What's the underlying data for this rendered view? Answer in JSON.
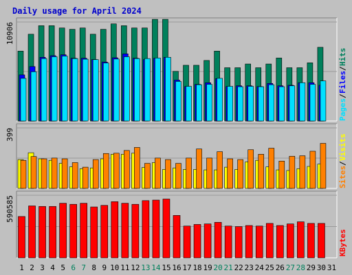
{
  "colors": {
    "background": "#C0C0C0",
    "border_light": "#FFFFFF",
    "border_dark": "#808080",
    "title": "#0000CC",
    "hits": "#00805C",
    "files": "#0000FF",
    "pages": "#00E0FF",
    "visits": "#FFFF00",
    "sites": "#FF8000",
    "kbytes": "#FF0000",
    "weekend_label": "#00805C",
    "weekday_label": "#000000",
    "axis_label": "#000000"
  },
  "chart_data": {
    "type": "bar",
    "title": "Daily usage for April 2024",
    "categories": [
      "1",
      "2",
      "3",
      "4",
      "5",
      "6",
      "7",
      "8",
      "9",
      "10",
      "11",
      "12",
      "13",
      "14",
      "15",
      "16",
      "17",
      "18",
      "19",
      "20",
      "21",
      "22",
      "23",
      "24",
      "25",
      "26",
      "27",
      "28",
      "29",
      "30",
      "31"
    ],
    "weekend_days": [
      "6",
      "7",
      "13",
      "14",
      "20",
      "21",
      "27",
      "28"
    ],
    "panels": [
      {
        "name": "hits-files-pages",
        "ymax_label": "10906",
        "ymax": 10906,
        "legend": [
          {
            "text": "Pages",
            "color": "#00E0FF"
          },
          {
            "text": "Files",
            "color": "#0000FF"
          },
          {
            "text": "Hits",
            "color": "#00805C"
          }
        ],
        "series": [
          {
            "name": "Hits",
            "values": [
              7700,
              9560,
              10500,
              10500,
              10250,
              10100,
              10250,
              9560,
              10100,
              10700,
              10500,
              10250,
              10250,
              11200,
              11200,
              5470,
              6140,
              6140,
              6670,
              7700,
              5870,
              5870,
              6280,
              5870,
              6280,
              6940,
              5870,
              5870,
              6410,
              8120,
              null
            ]
          },
          {
            "name": "Files",
            "values": [
              5080,
              6000,
              7020,
              7200,
              7300,
              6920,
              6920,
              6770,
              6500,
              6970,
              7400,
              6920,
              6770,
              6920,
              7020,
              4510,
              3800,
              4040,
              4220,
              4670,
              3800,
              3880,
              3880,
              3800,
              4140,
              3880,
              3940,
              4220,
              4220,
              3940,
              null
            ]
          },
          {
            "name": "Pages",
            "values": [
              4700,
              5430,
              6880,
              7080,
              7150,
              6880,
              6810,
              6760,
              6390,
              6830,
              7080,
              6880,
              6880,
              6940,
              7020,
              4360,
              3820,
              4000,
              4040,
              4700,
              3820,
              3780,
              3820,
              3780,
              4000,
              3780,
              3880,
              4220,
              4040,
              4420,
              null
            ]
          }
        ]
      },
      {
        "name": "visits-sites",
        "ymax_label": "399",
        "ymax": 399,
        "legend": [
          {
            "text": "Sites",
            "color": "#FF8000"
          },
          {
            "text": "Visits",
            "color": "#FFFF00"
          }
        ],
        "series": [
          {
            "name": "Visits",
            "values": [
              190,
              235,
              195,
              185,
              165,
              142,
              130,
              135,
              195,
              225,
              225,
              232,
              138,
              170,
              125,
              135,
              125,
              125,
              122,
              122,
              140,
              125,
              175,
              185,
              142,
              122,
              118,
              130,
              145,
              160,
              null
            ]
          },
          {
            "name": "Sites",
            "values": [
              185,
              210,
              195,
              200,
              195,
              170,
              140,
              190,
              230,
              232,
              250,
              270,
              165,
              200,
              190,
              165,
              200,
              260,
              200,
              242,
              195,
              190,
              255,
              225,
              265,
              180,
              212,
              215,
              245,
              297,
              null
            ]
          }
        ]
      },
      {
        "name": "kbytes",
        "ymax_label": "590585",
        "ymax": 590585,
        "legend": [
          {
            "text": "KBytes",
            "color": "#FF0000"
          }
        ],
        "series": [
          {
            "name": "KBytes",
            "values": [
              390000,
              490000,
              485000,
              485000,
              515000,
              505000,
              515000,
              480000,
              495000,
              530000,
              515000,
              505000,
              540000,
              545000,
              555000,
              400000,
              300000,
              315000,
              320000,
              335000,
              300000,
              295000,
              305000,
              300000,
              325000,
              305000,
              320000,
              340000,
              325000,
              325000,
              null
            ]
          }
        ]
      }
    ]
  }
}
